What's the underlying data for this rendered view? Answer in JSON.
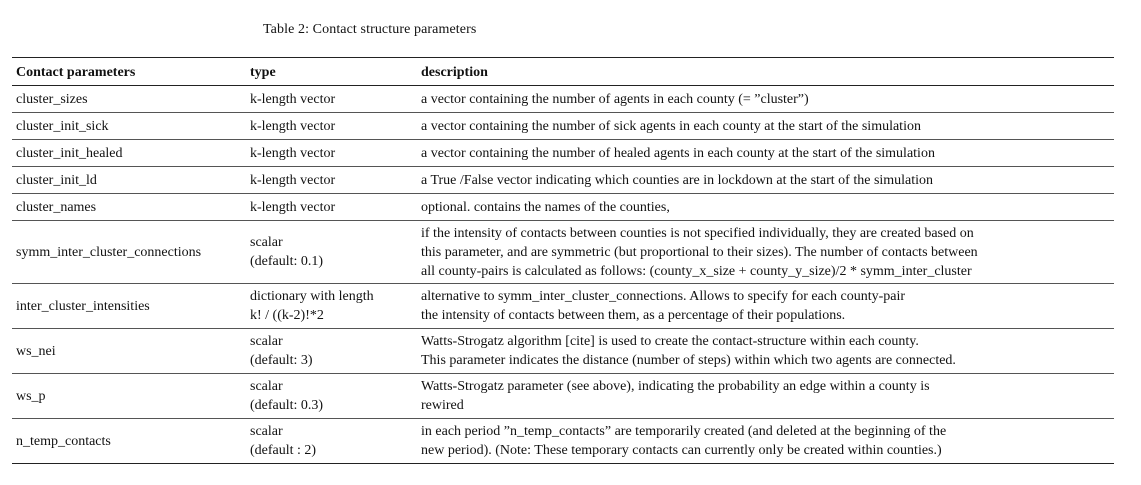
{
  "caption": "Table 2: Contact structure parameters",
  "headers": {
    "param": "Contact parameters",
    "type": "type",
    "description": "description"
  },
  "rows": [
    {
      "param": "cluster_sizes",
      "type": [
        "k-length vector"
      ],
      "description": [
        "a vector containing the number of agents in each county (= ”cluster”)"
      ]
    },
    {
      "param": "cluster_init_sick",
      "type": [
        "k-length vector"
      ],
      "description": [
        "a vector containing the number of sick agents in each county at the start of the simulation"
      ]
    },
    {
      "param": "cluster_init_healed",
      "type": [
        "k-length vector"
      ],
      "description": [
        "a vector containing the number of healed agents in each county at the start of the simulation"
      ]
    },
    {
      "param": "cluster_init_ld",
      "type": [
        "k-length vector"
      ],
      "description": [
        "a True /False vector indicating which counties are in lockdown at the start of the simulation"
      ]
    },
    {
      "param": "cluster_names",
      "type": [
        "k-length vector"
      ],
      "description": [
        "optional. contains the names of the counties,"
      ]
    },
    {
      "param": "symm_inter_cluster_connections",
      "type": [
        "scalar",
        "(default: 0.1)"
      ],
      "description": [
        "if the intensity of contacts between counties is not specified individually, they are created based on",
        "this parameter, and are symmetric (but proportional to their sizes).  The number of contacts between",
        "all county-pairs is calculated as follows: (county_x_size + county_y_size)/2 * symm_inter_cluster"
      ]
    },
    {
      "param": "inter_cluster_intensities",
      "type": [
        "dictionary with length",
        "k! / ((k-2)!*2"
      ],
      "description": [
        "alternative to symm_inter_cluster_connections. Allows to specify for each county-pair",
        "the intensity of contacts between them, as a percentage of their populations."
      ]
    },
    {
      "param": "ws_nei",
      "type": [
        "scalar",
        "(default: 3)"
      ],
      "description": [
        "Watts-Strogatz algorithm [cite] is used to create the contact-structure within each county.",
        "This parameter indicates the distance (number of steps) within which two agents are connected."
      ]
    },
    {
      "param": "ws_p",
      "type": [
        "scalar",
        "(default: 0.3)"
      ],
      "description": [
        "Watts-Strogatz parameter (see above), indicating the probability an edge within a county is",
        "rewired"
      ]
    },
    {
      "param": "n_temp_contacts",
      "type": [
        "scalar",
        "(default : 2)"
      ],
      "description": [
        "in each period ”n_temp_contacts” are temporarily created (and deleted at the beginning of the",
        "new period). (Note: These temporary contacts can currently only be created within counties.)"
      ]
    }
  ]
}
